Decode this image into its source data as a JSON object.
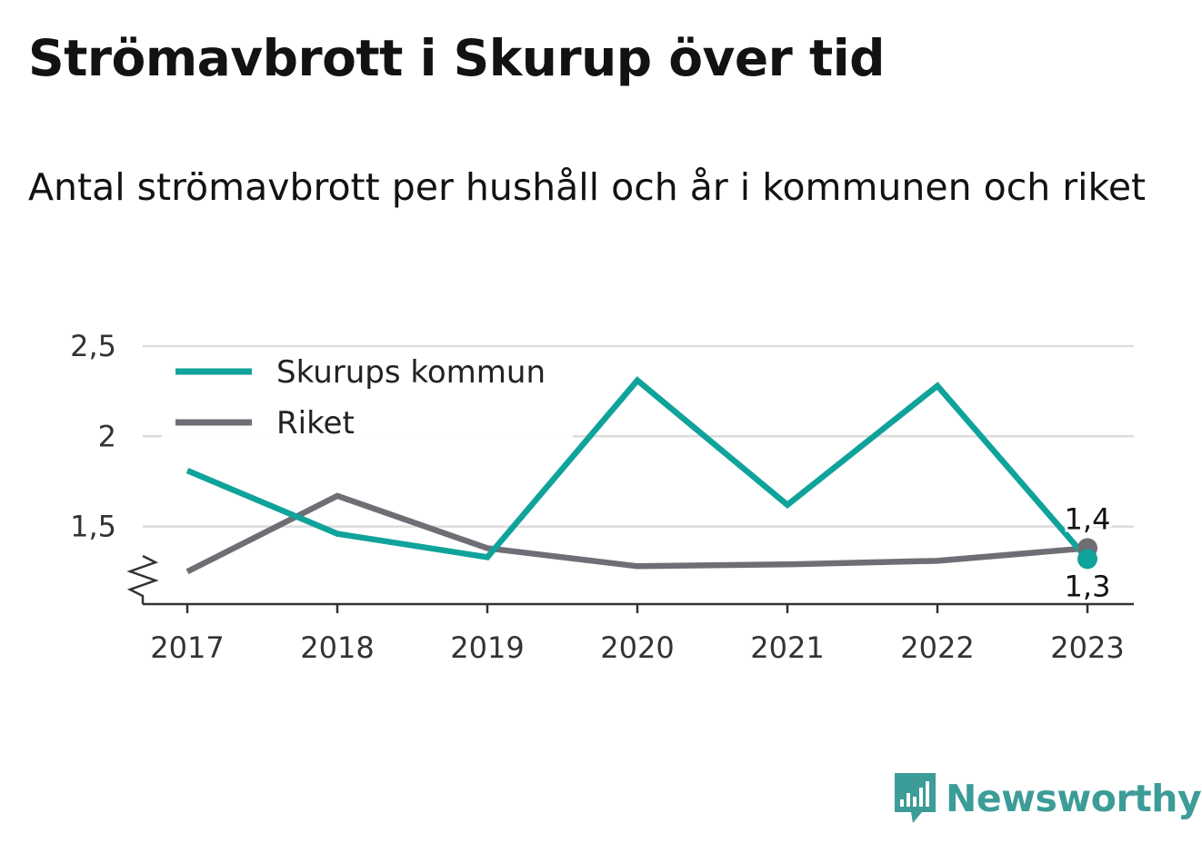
{
  "title": "Strömavbrott i Skurup över tid",
  "subtitle": "Antal strömavbrott per hushåll och år i kommunen och riket",
  "brand": {
    "name": "Newsworthy",
    "icon": "newsworthy-logo-icon",
    "color": "#3c9c98"
  },
  "chart_data": {
    "type": "line",
    "title": "Strömavbrott i Skurup över tid",
    "subtitle": "Antal strömavbrott per hushåll och år i kommunen och riket",
    "x": [
      "2017",
      "2018",
      "2019",
      "2020",
      "2021",
      "2022",
      "2023"
    ],
    "series": [
      {
        "name": "Skurups kommun",
        "color": "#0fa39b",
        "values": [
          1.81,
          1.46,
          1.33,
          2.31,
          1.62,
          2.28,
          1.32
        ]
      },
      {
        "name": "Riket",
        "color": "#6f6e75",
        "values": [
          1.25,
          1.67,
          1.38,
          1.28,
          1.29,
          1.31,
          1.38
        ]
      }
    ],
    "ylim": [
      1.07,
      2.5
    ],
    "y_ticks": [
      1.5,
      2,
      2.5
    ],
    "y_tick_labels": [
      "1,5",
      "2",
      "2,5"
    ],
    "y_axis_break": true,
    "grid": true,
    "legend_position": "top-left",
    "end_labels": [
      {
        "series": "Riket",
        "text": "1,4",
        "position": "above"
      },
      {
        "series": "Skurups kommun",
        "text": "1,3",
        "position": "below"
      }
    ]
  }
}
